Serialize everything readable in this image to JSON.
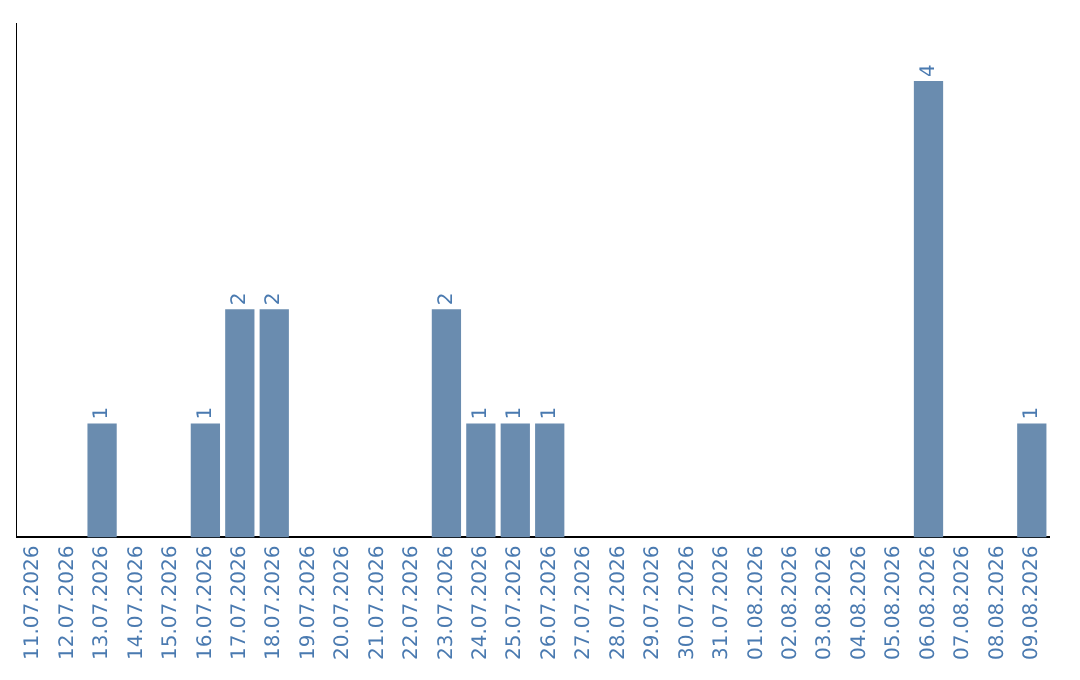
{
  "chart_data": {
    "type": "bar",
    "categories": [
      "11.07.2026",
      "12.07.2026",
      "13.07.2026",
      "14.07.2026",
      "15.07.2026",
      "16.07.2026",
      "17.07.2026",
      "18.07.2026",
      "19.07.2026",
      "20.07.2026",
      "21.07.2026",
      "22.07.2026",
      "23.07.2026",
      "24.07.2026",
      "25.07.2026",
      "26.07.2026",
      "27.07.2026",
      "28.07.2026",
      "29.07.2026",
      "30.07.2026",
      "31.07.2026",
      "01.08.2026",
      "02.08.2026",
      "03.08.2026",
      "04.08.2026",
      "05.08.2026",
      "06.08.2026",
      "07.08.2026",
      "08.08.2026",
      "09.08.2026"
    ],
    "values": [
      0,
      0,
      1,
      0,
      0,
      1,
      2,
      2,
      0,
      0,
      0,
      0,
      2,
      1,
      1,
      1,
      0,
      0,
      0,
      0,
      0,
      0,
      0,
      0,
      0,
      0,
      4,
      0,
      0,
      1
    ],
    "value_labels": [
      null,
      null,
      "1",
      null,
      null,
      "1",
      "2",
      "2",
      null,
      null,
      null,
      null,
      "2",
      "1",
      "1",
      "1",
      null,
      null,
      null,
      null,
      null,
      null,
      null,
      null,
      null,
      null,
      "4",
      null,
      null,
      "1"
    ],
    "color": "#6a8caf",
    "grid": false,
    "legend": false,
    "tick_labels": "x"
  }
}
